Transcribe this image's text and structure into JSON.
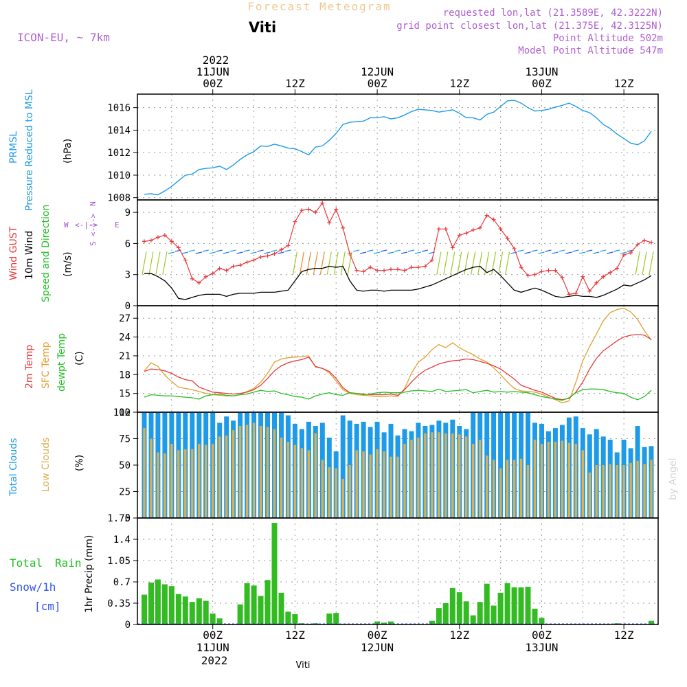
{
  "header": {
    "title": "Forecast Meteogram",
    "station": "Viti",
    "model": "ICON-EU, ~ 7km",
    "requested": "requested lon,lat (21.3589E, 42.3222N)",
    "gridpoint": "grid point closest lon,lat (21.375E, 42.3125N)",
    "point_alt": "Point Altitude 502m",
    "model_alt": "Model Point Altitude 547m",
    "footer_station": "Viti",
    "watermark": "by Angel"
  },
  "time_axis": {
    "top_year": "2022",
    "bottom_year": "2022",
    "ticks": [
      {
        "label": "00Z",
        "date": "11JUN",
        "hour": 0
      },
      {
        "label": "12Z",
        "date": "",
        "hour": 12
      },
      {
        "label": "00Z",
        "date": "12JUN",
        "hour": 24
      },
      {
        "label": "12Z",
        "date": "",
        "hour": 36
      },
      {
        "label": "00Z",
        "date": "13JUN",
        "hour": 48
      },
      {
        "label": "12Z",
        "date": "",
        "hour": 60
      }
    ],
    "x_range_hours": [
      -11,
      65
    ]
  },
  "panel_labels": {
    "pressure": [
      "PRMSL",
      "Pressure Reduced to MSL"
    ],
    "pressure_unit": "(hPa)",
    "wind": [
      "Wind GUST",
      "10m Wind",
      "Speed and Direction"
    ],
    "wind_unit": "(m/s)",
    "compass": {
      "n": "N",
      "s": "S",
      "w": "W",
      "e": "E",
      "ns": "<-|->",
      "ew": "<-|->"
    },
    "temp": [
      "2m Temp",
      "SFC Temp",
      "dewpt Temp"
    ],
    "temp_unit": "(C)",
    "clouds": [
      "Total Clouds",
      "Low Clouds"
    ],
    "clouds_unit": "(%)",
    "precip": {
      "total": "Total",
      "rain": "Rain",
      "snow": "Snow/1h",
      "cm": "[cm]",
      "axis": "1hr Precip (mm)"
    }
  },
  "colors": {
    "pressure": "#1e9be8",
    "gust": "#e8393c",
    "wind": "#000000",
    "temp2m": "#e8393c",
    "sfc": "#e0a030",
    "dewpt": "#22c022",
    "total_clouds": "#1e9be8",
    "low_clouds": "#dcb050",
    "rain": "#33bb22",
    "purple": "#a050d0",
    "title": "#f0c890"
  },
  "chart_data": [
    {
      "type": "line",
      "name": "PRMSL",
      "ylim": [
        1007.8,
        1017.2
      ],
      "yticks": [
        1008,
        1010,
        1012,
        1014,
        1016
      ],
      "x": [
        -10,
        -9,
        -8,
        -7,
        -6,
        -5,
        -4,
        -3,
        -2,
        -1,
        0,
        1,
        2,
        3,
        4,
        5,
        6,
        7,
        8,
        9,
        10,
        11,
        12,
        13,
        14,
        15,
        16,
        17,
        18,
        19,
        20,
        21,
        22,
        23,
        24,
        25,
        26,
        27,
        28,
        29,
        30,
        31,
        32,
        33,
        34,
        35,
        36,
        37,
        38,
        39,
        40,
        41,
        42,
        43,
        44,
        45,
        46,
        47,
        48,
        49,
        50,
        51,
        52,
        53,
        54,
        55,
        56,
        57,
        58,
        59,
        60,
        61,
        62,
        63,
        64
      ],
      "values": [
        1008.3,
        1008.35,
        1008.25,
        1008.6,
        1009.0,
        1009.5,
        1010.0,
        1010.1,
        1010.5,
        1010.6,
        1010.65,
        1010.8,
        1010.5,
        1010.9,
        1011.4,
        1011.8,
        1012.1,
        1012.6,
        1012.55,
        1012.75,
        1012.6,
        1012.4,
        1012.35,
        1012.1,
        1011.8,
        1012.5,
        1012.6,
        1013.1,
        1013.7,
        1014.5,
        1014.7,
        1014.75,
        1014.8,
        1015.1,
        1015.1,
        1015.2,
        1015.0,
        1015.1,
        1015.35,
        1015.65,
        1015.85,
        1015.8,
        1015.75,
        1015.6,
        1015.7,
        1015.8,
        1015.5,
        1015.1,
        1015.1,
        1014.9,
        1015.4,
        1015.6,
        1016.1,
        1016.6,
        1016.65,
        1016.4,
        1016.0,
        1015.7,
        1015.75,
        1015.85,
        1016.05,
        1016.2,
        1016.4,
        1016.1,
        1015.75,
        1015.55,
        1015.1,
        1014.5,
        1014.15,
        1013.65,
        1013.25,
        1012.85,
        1012.7,
        1013.05,
        1013.9
      ]
    },
    {
      "type": "line",
      "name": "Wind GUST / 10m Wind",
      "ylim": [
        0,
        10.2
      ],
      "yticks": [
        0,
        3,
        6,
        9
      ],
      "x": [
        -10,
        -9,
        -8,
        -7,
        -6,
        -5,
        -4,
        -3,
        -2,
        -1,
        0,
        1,
        2,
        3,
        4,
        5,
        6,
        7,
        8,
        9,
        10,
        11,
        12,
        13,
        14,
        15,
        16,
        17,
        18,
        19,
        20,
        21,
        22,
        23,
        24,
        25,
        26,
        27,
        28,
        29,
        30,
        31,
        32,
        33,
        34,
        35,
        36,
        37,
        38,
        39,
        40,
        41,
        42,
        43,
        44,
        45,
        46,
        47,
        48,
        49,
        50,
        51,
        52,
        53,
        54,
        55,
        56,
        57,
        58,
        59,
        60,
        61,
        62,
        63,
        64
      ],
      "series": [
        {
          "name": "Wind GUST",
          "values": [
            6.2,
            6.3,
            6.6,
            6.8,
            6.2,
            5.6,
            4.4,
            2.6,
            2.2,
            2.8,
            3.1,
            3.6,
            3.4,
            3.8,
            3.9,
            4.2,
            4.4,
            4.7,
            4.8,
            5.0,
            5.4,
            5.8,
            8.1,
            9.2,
            9.3,
            9.0,
            9.9,
            8.0,
            9.3,
            7.5,
            5.0,
            3.4,
            3.3,
            3.7,
            3.4,
            3.4,
            3.5,
            3.5,
            3.4,
            3.7,
            3.7,
            3.8,
            4.4,
            7.4,
            7.4,
            5.6,
            6.8,
            7.0,
            7.3,
            7.5,
            8.7,
            8.3,
            7.4,
            6.5,
            5.5,
            3.7,
            2.9,
            3.0,
            3.3,
            3.4,
            3.4,
            2.7,
            1.1,
            1.2,
            2.8,
            1.4,
            2.2,
            2.8,
            3.2,
            3.6,
            4.9,
            5.1,
            5.9,
            6.3,
            6.1
          ]
        },
        {
          "name": "10m Wind",
          "values": [
            3.1,
            3.1,
            2.8,
            2.4,
            1.7,
            0.7,
            0.6,
            0.8,
            1.0,
            1.1,
            1.1,
            1.1,
            0.9,
            1.1,
            1.2,
            1.2,
            1.2,
            1.3,
            1.3,
            1.3,
            1.4,
            1.5,
            2.4,
            3.3,
            3.5,
            3.6,
            3.6,
            3.8,
            3.7,
            3.8,
            2.4,
            1.5,
            1.4,
            1.5,
            1.5,
            1.4,
            1.5,
            1.5,
            1.5,
            1.5,
            1.6,
            1.8,
            2.0,
            2.3,
            2.6,
            2.9,
            3.2,
            3.5,
            3.7,
            3.8,
            3.2,
            3.5,
            2.9,
            2.2,
            1.5,
            1.3,
            1.5,
            1.7,
            1.5,
            1.2,
            0.9,
            0.8,
            0.9,
            1.0,
            0.9,
            0.9,
            0.8,
            1.0,
            1.3,
            1.6,
            2.0,
            1.9,
            2.2,
            2.5,
            2.9
          ]
        }
      ]
    },
    {
      "type": "line",
      "name": "Temperatures",
      "ylim": [
        12,
        29
      ],
      "yticks": [
        12,
        15,
        18,
        21,
        24,
        27
      ],
      "x": [
        -10,
        -9,
        -8,
        -7,
        -6,
        -5,
        -4,
        -3,
        -2,
        -1,
        0,
        1,
        2,
        3,
        4,
        5,
        6,
        7,
        8,
        9,
        10,
        11,
        12,
        13,
        14,
        15,
        16,
        17,
        18,
        19,
        20,
        21,
        22,
        23,
        24,
        25,
        26,
        27,
        28,
        29,
        30,
        31,
        32,
        33,
        34,
        35,
        36,
        37,
        38,
        39,
        40,
        41,
        42,
        43,
        44,
        45,
        46,
        47,
        48,
        49,
        50,
        51,
        52,
        53,
        54,
        55,
        56,
        57,
        58,
        59,
        60,
        61,
        62,
        63,
        64
      ],
      "series": [
        {
          "name": "2m Temp",
          "values": [
            18.5,
            18.9,
            18.8,
            18.6,
            18.2,
            17.6,
            17.2,
            17.0,
            16.0,
            15.6,
            15.2,
            15.1,
            15.0,
            14.9,
            15.0,
            15.2,
            15.6,
            16.3,
            17.4,
            18.6,
            19.4,
            19.9,
            20.2,
            20.4,
            20.8,
            19.3,
            19.0,
            18.5,
            17.4,
            15.9,
            15.1,
            15.0,
            14.9,
            14.8,
            14.8,
            14.8,
            14.9,
            14.7,
            15.6,
            16.8,
            17.9,
            18.7,
            19.2,
            19.7,
            20.0,
            20.2,
            20.3,
            20.5,
            20.4,
            20.1,
            19.8,
            19.4,
            18.9,
            18.1,
            17.3,
            16.3,
            15.9,
            15.5,
            15.2,
            14.7,
            14.2,
            14.0,
            14.2,
            15.2,
            16.8,
            18.9,
            20.6,
            21.8,
            22.6,
            23.4,
            24.0,
            24.3,
            24.4,
            24.3,
            23.6
          ]
        },
        {
          "name": "SFC Temp",
          "values": [
            18.6,
            19.9,
            19.3,
            17.9,
            16.9,
            16.0,
            15.8,
            15.6,
            15.3,
            15.0,
            14.8,
            14.7,
            14.6,
            14.6,
            14.8,
            15.3,
            15.8,
            16.8,
            18.2,
            20.0,
            20.5,
            20.7,
            20.8,
            20.9,
            21.0,
            19.2,
            19.0,
            18.3,
            17.0,
            15.6,
            15.0,
            14.8,
            14.7,
            14.6,
            14.5,
            14.5,
            14.6,
            14.5,
            15.8,
            18.2,
            20.0,
            20.8,
            22.0,
            22.8,
            22.3,
            23.1,
            22.3,
            21.7,
            21.2,
            20.5,
            20.0,
            19.1,
            18.0,
            16.8,
            15.8,
            15.4,
            15.3,
            15.2,
            14.9,
            14.4,
            14.0,
            13.5,
            13.8,
            16.8,
            20.2,
            22.5,
            24.5,
            26.6,
            27.9,
            28.4,
            28.6,
            28.0,
            26.8,
            25.0,
            23.5
          ]
        },
        {
          "name": "dewpt Temp",
          "values": [
            14.4,
            14.8,
            14.7,
            14.6,
            14.6,
            14.5,
            14.4,
            14.3,
            14.1,
            14.6,
            14.8,
            14.9,
            14.7,
            14.6,
            14.8,
            14.9,
            15.2,
            15.5,
            15.3,
            15.4,
            15.0,
            14.8,
            14.5,
            14.4,
            14.1,
            14.6,
            14.9,
            15.1,
            14.8,
            14.7,
            15.1,
            15.0,
            14.8,
            14.9,
            15.1,
            15.2,
            15.1,
            15.1,
            15.2,
            15.4,
            15.5,
            15.4,
            15.3,
            15.7,
            15.3,
            15.4,
            15.5,
            15.6,
            15.1,
            15.3,
            15.5,
            15.2,
            15.3,
            15.2,
            15.3,
            15.2,
            15.1,
            14.8,
            14.5,
            14.3,
            14.1,
            13.9,
            14.3,
            15.1,
            15.6,
            15.7,
            15.7,
            15.6,
            15.3,
            15.1,
            15.0,
            14.4,
            14.0,
            14.5,
            15.5
          ]
        }
      ]
    },
    {
      "type": "bar",
      "name": "Clouds",
      "ylim": [
        0,
        100
      ],
      "yticks": [
        0,
        25,
        50,
        75,
        100
      ],
      "x": [
        -10,
        -9,
        -8,
        -7,
        -6,
        -5,
        -4,
        -3,
        -2,
        -1,
        0,
        1,
        2,
        3,
        4,
        5,
        6,
        7,
        8,
        9,
        10,
        11,
        12,
        13,
        14,
        15,
        16,
        17,
        18,
        19,
        20,
        21,
        22,
        23,
        24,
        25,
        26,
        27,
        28,
        29,
        30,
        31,
        32,
        33,
        34,
        35,
        36,
        37,
        38,
        39,
        40,
        41,
        42,
        43,
        44,
        45,
        46,
        47,
        48,
        49,
        50,
        51,
        52,
        53,
        54,
        55,
        56,
        57,
        58,
        59,
        60,
        61,
        62,
        63,
        64
      ],
      "series": [
        {
          "name": "Total Clouds",
          "values": [
            100,
            100,
            100,
            100,
            100,
            100,
            100,
            100,
            100,
            100,
            100,
            90,
            96,
            92,
            100,
            100,
            100,
            100,
            100,
            100,
            100,
            97,
            89,
            84,
            91,
            87,
            90,
            76,
            63,
            97,
            92,
            89,
            91,
            86,
            91,
            81,
            89,
            78,
            84,
            82,
            90,
            87,
            88,
            92,
            90,
            93,
            87,
            84,
            100,
            100,
            100,
            100,
            100,
            100,
            100,
            100,
            100,
            90,
            89,
            82,
            85,
            88,
            95,
            96,
            85,
            79,
            84,
            77,
            74,
            62,
            74,
            66,
            87,
            67,
            68
          ]
        },
        {
          "name": "Low Clouds",
          "values": [
            85,
            75,
            62,
            61,
            70,
            64,
            65,
            65,
            70,
            69,
            70,
            77,
            78,
            83,
            87,
            88,
            90,
            87,
            86,
            84,
            76,
            72,
            69,
            66,
            64,
            80,
            55,
            48,
            47,
            37,
            50,
            64,
            63,
            60,
            65,
            63,
            58,
            58,
            70,
            74,
            76,
            80,
            81,
            81,
            80,
            80,
            79,
            77,
            70,
            74,
            59,
            55,
            47,
            55,
            55,
            56,
            50,
            74,
            70,
            72,
            72,
            73,
            71,
            70,
            64,
            43,
            50,
            50,
            51,
            50,
            50,
            52,
            54,
            51,
            55
          ]
        }
      ]
    },
    {
      "type": "bar",
      "name": "1hr Precip",
      "ylim": [
        0,
        1.75
      ],
      "yticks": [
        0,
        0.35,
        0.7,
        1.05,
        1.4,
        1.75
      ],
      "x": [
        -10,
        -9,
        -8,
        -7,
        -6,
        -5,
        -4,
        -3,
        -2,
        -1,
        0,
        1,
        2,
        3,
        4,
        5,
        6,
        7,
        8,
        9,
        10,
        11,
        12,
        13,
        14,
        15,
        16,
        17,
        18,
        19,
        20,
        21,
        22,
        23,
        24,
        25,
        26,
        27,
        28,
        29,
        30,
        31,
        32,
        33,
        34,
        35,
        36,
        37,
        38,
        39,
        40,
        41,
        42,
        43,
        44,
        45,
        46,
        47,
        48,
        49,
        50,
        51,
        52,
        53,
        54,
        55,
        56,
        57,
        58,
        59,
        60,
        61,
        62,
        63,
        64
      ],
      "values": [
        0.49,
        0.69,
        0.74,
        0.66,
        0.63,
        0.5,
        0.46,
        0.37,
        0.43,
        0.39,
        0.18,
        0.1,
        0,
        0,
        0.33,
        0.68,
        0.64,
        0.47,
        0.73,
        1.67,
        0.52,
        0.21,
        0.17,
        0.02,
        0.01,
        0.02,
        0,
        0.18,
        0.19,
        0,
        0,
        0,
        0,
        0,
        0.05,
        0.03,
        0.05,
        0,
        0,
        0,
        0,
        0,
        0.06,
        0.27,
        0.35,
        0.6,
        0.53,
        0.38,
        0.15,
        0.37,
        0.67,
        0.31,
        0.52,
        0.68,
        0.61,
        0.61,
        0.62,
        0.26,
        0.11,
        0,
        0,
        0,
        0,
        0,
        0,
        0,
        0,
        0,
        0,
        0.02,
        0,
        0,
        0,
        0,
        0.06
      ]
    }
  ]
}
